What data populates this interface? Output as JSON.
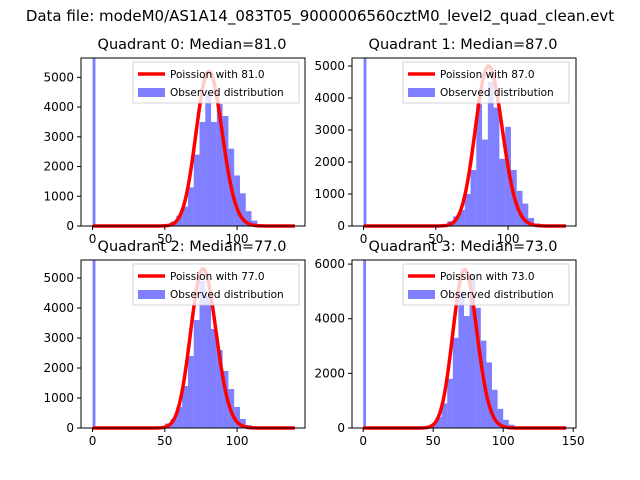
{
  "figure_title": "Data file: modeM0/AS1A14_083T05_9000006560cztM0_level2_quad_clean.evt",
  "chart_data": [
    {
      "type": "bar",
      "title": "Quadrant 0: Median=81.0",
      "xlim": [
        -8,
        147
      ],
      "ylim": [
        0,
        5650
      ],
      "xticks": [
        0,
        50,
        100
      ],
      "yticks": [
        0,
        1000,
        2000,
        3000,
        4000,
        5000
      ],
      "xtick_labels": [
        "0",
        "50",
        "100"
      ],
      "ytick_labels": [
        "0",
        "1000",
        "2000",
        "3000",
        "4000",
        "5000"
      ],
      "median": 81.0,
      "legend": {
        "position": "top-right",
        "entries": [
          "Poission with 81.0",
          "Observed distribution"
        ]
      },
      "spike": {
        "x": 0,
        "value": 5650
      },
      "histogram": {
        "bins": [
          46,
          50,
          54,
          58,
          62,
          66,
          70,
          74,
          78,
          82,
          86,
          90,
          94,
          98,
          102,
          106,
          110,
          114,
          118
        ],
        "values": [
          20,
          60,
          150,
          350,
          650,
          1300,
          2400,
          3500,
          4500,
          3500,
          4100,
          3700,
          2600,
          1700,
          1100,
          500,
          180,
          60,
          20
        ]
      },
      "poisson_peak": 5200,
      "poisson_x_range": [
        0,
        140
      ]
    },
    {
      "type": "bar",
      "title": "Quadrant 1: Median=87.0",
      "xlim": [
        -8,
        147
      ],
      "ylim": [
        0,
        5250
      ],
      "xticks": [
        0,
        50,
        100
      ],
      "yticks": [
        0,
        1000,
        2000,
        3000,
        4000,
        5000
      ],
      "xtick_labels": [
        "0",
        "50",
        "100"
      ],
      "ytick_labels": [
        "0",
        "1000",
        "2000",
        "3000",
        "4000",
        "5000"
      ],
      "median": 87.0,
      "legend": {
        "position": "top-right",
        "entries": [
          "Poission with 87.0",
          "Observed distribution"
        ]
      },
      "spike": {
        "x": 0,
        "value": 5250
      },
      "histogram": {
        "bins": [
          50,
          54,
          58,
          62,
          66,
          70,
          74,
          78,
          82,
          86,
          90,
          94,
          98,
          102,
          106,
          110,
          114,
          118,
          122
        ],
        "values": [
          20,
          60,
          150,
          300,
          500,
          1000,
          1750,
          3800,
          2700,
          4500,
          3700,
          2100,
          3100,
          1750,
          1100,
          700,
          250,
          80,
          20
        ]
      },
      "poisson_peak": 5000,
      "poisson_x_range": [
        0,
        140
      ]
    },
    {
      "type": "bar",
      "title": "Quadrant 2: Median=77.0",
      "xlim": [
        -8,
        147
      ],
      "ylim": [
        0,
        5600
      ],
      "xticks": [
        0,
        50,
        100
      ],
      "yticks": [
        0,
        1000,
        2000,
        3000,
        4000,
        5000
      ],
      "xtick_labels": [
        "0",
        "50",
        "100"
      ],
      "ytick_labels": [
        "0",
        "1000",
        "2000",
        "3000",
        "4000",
        "5000"
      ],
      "median": 77.0,
      "legend": {
        "position": "top-right",
        "entries": [
          "Poission with 77.0",
          "Observed distribution"
        ]
      },
      "spike": {
        "x": 0,
        "value": 5600
      },
      "histogram": {
        "bins": [
          46,
          50,
          54,
          58,
          62,
          66,
          70,
          74,
          78,
          82,
          86,
          90,
          94,
          98,
          102,
          106,
          110
        ],
        "values": [
          40,
          150,
          300,
          700,
          1400,
          2400,
          3600,
          4900,
          4400,
          3300,
          2600,
          1900,
          1300,
          700,
          300,
          100,
          30
        ]
      },
      "poisson_peak": 5300,
      "poisson_x_range": [
        0,
        140
      ]
    },
    {
      "type": "bar",
      "title": "Quadrant 3: Median=73.0",
      "xlim": [
        -8,
        152
      ],
      "ylim": [
        0,
        6150
      ],
      "xticks": [
        0,
        50,
        100,
        150
      ],
      "yticks": [
        0,
        2000,
        4000,
        6000
      ],
      "xtick_labels": [
        "0",
        "50",
        "100",
        "150"
      ],
      "ytick_labels": [
        "0",
        "2000",
        "4000",
        "6000"
      ],
      "median": 73.0,
      "legend": {
        "position": "top-right",
        "entries": [
          "Poission with 73.0",
          "Observed distribution"
        ]
      },
      "spike": {
        "x": 0,
        "value": 6150
      },
      "histogram": {
        "bins": [
          44,
          48,
          52,
          56,
          60,
          64,
          68,
          72,
          76,
          80,
          84,
          88,
          92,
          96,
          100,
          104,
          108
        ],
        "values": [
          40,
          150,
          400,
          900,
          1800,
          3300,
          5000,
          4100,
          5600,
          4400,
          3200,
          2400,
          1400,
          700,
          300,
          120,
          40
        ]
      },
      "poisson_peak": 5800,
      "poisson_x_range": [
        0,
        145
      ]
    }
  ]
}
